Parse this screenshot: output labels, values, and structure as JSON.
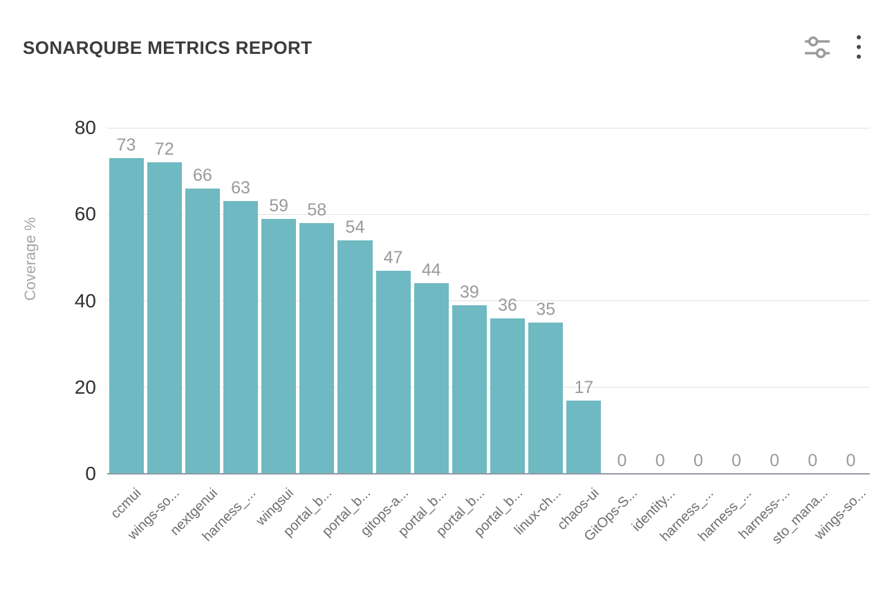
{
  "header": {
    "title": "SONARQUBE METRICS REPORT",
    "filter_icon": "filter-sliders-icon",
    "menu_icon": "kebab-menu-icon"
  },
  "chart_data": {
    "type": "bar",
    "title": "SONARQUBE METRICS REPORT",
    "xlabel": "",
    "ylabel": "Coverage %",
    "ylim": [
      0,
      80
    ],
    "yticks": [
      0,
      20,
      40,
      60,
      80
    ],
    "grid": true,
    "legend": "none",
    "categories": [
      "ccmui",
      "wings-so...",
      "nextgenui",
      "harness_...",
      "wingsui",
      "portal_b...",
      "portal_b...",
      "gitops-a...",
      "portal_b...",
      "portal_b...",
      "portal_b...",
      "linux-ch...",
      "chaos-ui",
      "GitOps-S...",
      "identity...",
      "harness_...",
      "harness_...",
      "harness-...",
      "sto_mana...",
      "wings-so..."
    ],
    "values": [
      73,
      72,
      66,
      63,
      59,
      58,
      54,
      47,
      44,
      39,
      36,
      35,
      17,
      0,
      0,
      0,
      0,
      0,
      0,
      0
    ]
  },
  "colors": {
    "bar": "#6fb9c2",
    "gridline": "#e2e2e2",
    "axis_line": "#9298a5",
    "title_text": "#3c3c3c",
    "y_tick_text": "#2f2f2f",
    "value_label_text": "#9a9a9a",
    "x_label_text": "#6e6e6e",
    "y_axis_title_text": "#a6a6a6",
    "filter_icon": "#9b9b9b",
    "kebab_icon": "#474747",
    "background": "#ffffff"
  }
}
